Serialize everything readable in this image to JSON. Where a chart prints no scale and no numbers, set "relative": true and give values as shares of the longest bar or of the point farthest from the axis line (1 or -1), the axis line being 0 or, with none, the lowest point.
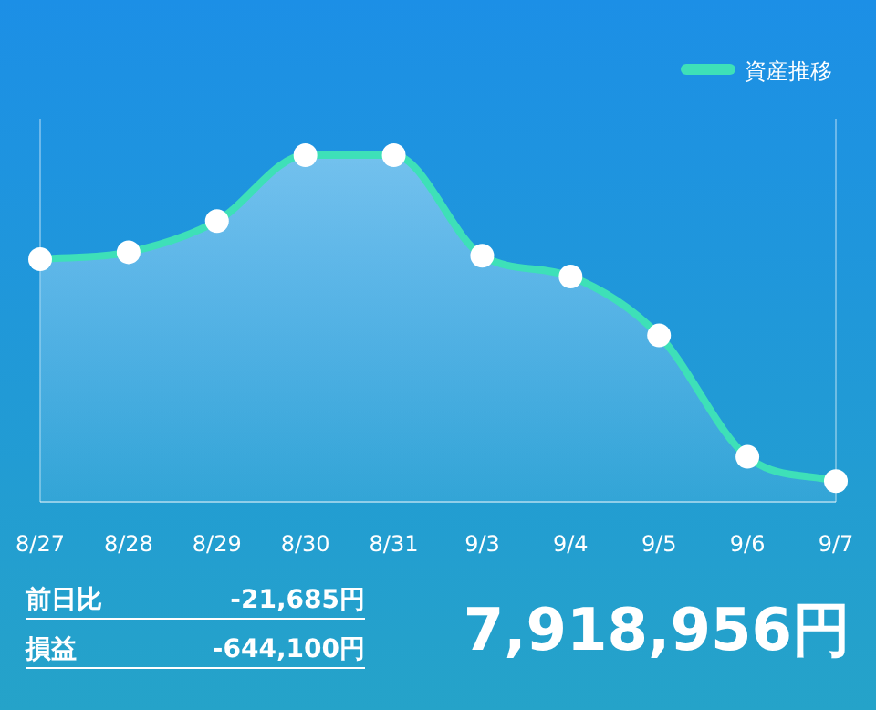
{
  "chart_data": {
    "type": "area",
    "relative": true,
    "categories": [
      "8/27",
      "8/28",
      "8/29",
      "8/30",
      "8/31",
      "9/3",
      "9/4",
      "9/5",
      "9/6",
      "9/7"
    ],
    "series": [
      {
        "name": "資産推移",
        "color": "#3ee0b8",
        "values": [
          0.7,
          0.72,
          0.81,
          1,
          1,
          0.71,
          0.65,
          0.48,
          0.13,
          0.06
        ]
      }
    ],
    "marker": "circle",
    "legend": "top right",
    "annotations": [
      "前日比",
      "-21,685円",
      "損益",
      "-644,100円",
      "7,918,956円"
    ]
  }
}
